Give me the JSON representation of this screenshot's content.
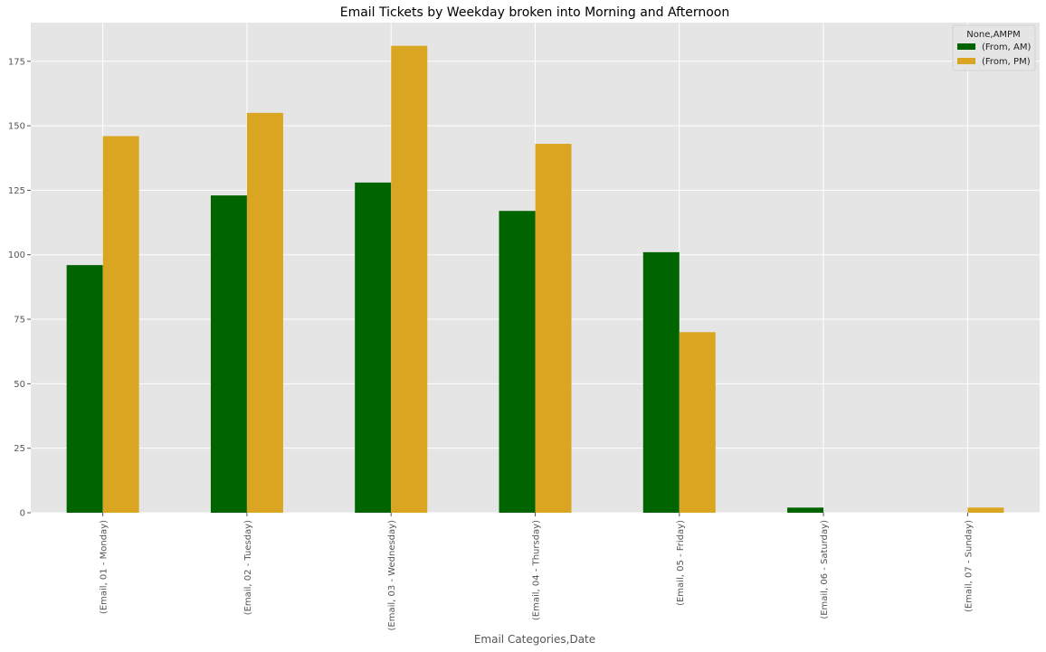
{
  "chart_data": {
    "type": "bar",
    "title": "Email Tickets by Weekday broken into Morning and Afternoon",
    "xlabel": "Email Categories,Date",
    "ylabel": "",
    "categories": [
      "(Email, 01 - Monday)",
      "(Email, 02 - Tuesday)",
      "(Email, 03 - Wednesday)",
      "(Email, 04 - Thursday)",
      "(Email, 05 - Friday)",
      "(Email, 06 - Saturday)",
      "(Email, 07 - Sunday)"
    ],
    "series": [
      {
        "name": "(From, AM)",
        "color": "#006400",
        "values": [
          96,
          123,
          128,
          117,
          101,
          2,
          0
        ]
      },
      {
        "name": "(From, PM)",
        "color": "#daa520",
        "values": [
          146,
          155,
          181,
          143,
          70,
          0,
          2
        ]
      }
    ],
    "ylim": [
      0,
      190
    ],
    "yticks": [
      0,
      25,
      50,
      75,
      100,
      125,
      150,
      175
    ],
    "legend_title": "None,AMPM",
    "legend_position": "top-right",
    "grid": true,
    "background_color": "#e5e5e5",
    "grid_color": "#ffffff"
  }
}
